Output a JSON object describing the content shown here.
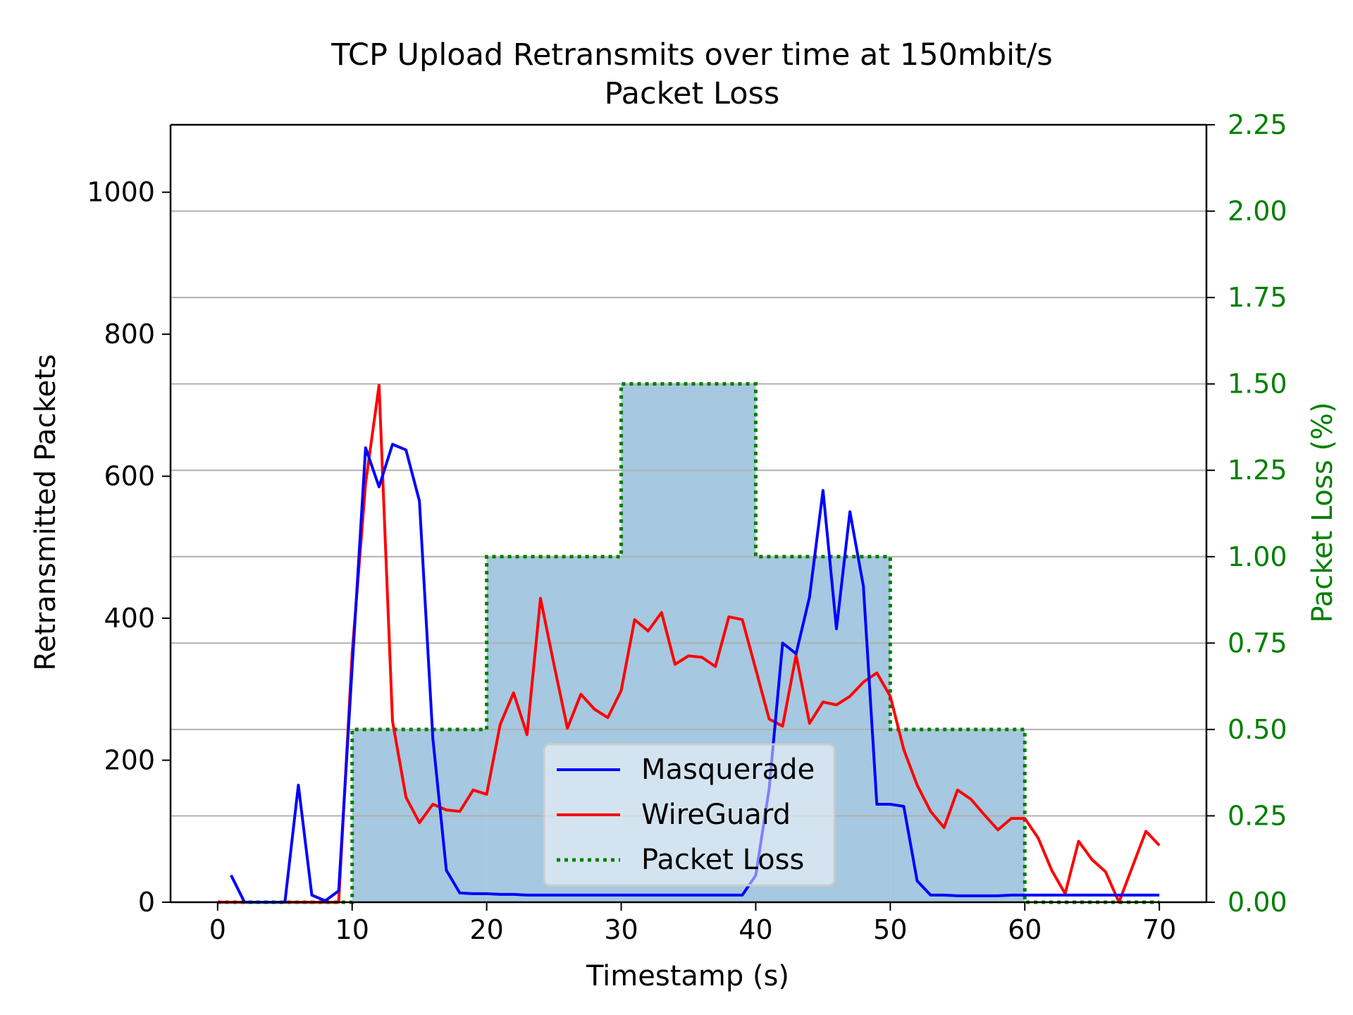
{
  "chart_data": {
    "type": "line",
    "title": "TCP Upload Retransmits over time at 150mbit/s",
    "subtitle": "Packet Loss",
    "xlabel": "Timestamp (s)",
    "ylabel": "Retransmitted Packets",
    "y2label": "Packet Loss (%)",
    "xlim": [
      -3.5,
      73.5
    ],
    "ylim": [
      0,
      1095
    ],
    "y2lim": [
      0,
      2.25
    ],
    "x_ticks": [
      "0",
      "10",
      "20",
      "30",
      "40",
      "50",
      "60",
      "70"
    ],
    "y_ticks": [
      "0",
      "200",
      "400",
      "600",
      "800",
      "1000"
    ],
    "y2_ticks": [
      "0.00",
      "0.25",
      "0.50",
      "0.75",
      "1.00",
      "1.25",
      "1.50",
      "1.75",
      "2.00",
      "2.25"
    ],
    "grid": "horizontal lines at right-axis ticks",
    "legend_position": "lower-center",
    "colors": {
      "masquerade": "#0000ff",
      "wireguard": "#ff0000",
      "packet_loss": "#007f00",
      "packet_loss_fill": "#a6c8e0",
      "right_axis": "#008000"
    },
    "series": [
      {
        "name": "Masquerade",
        "x": [
          1,
          2,
          3,
          4,
          5,
          6,
          7,
          8,
          9,
          10,
          11,
          12,
          13,
          14,
          15,
          16,
          17,
          18,
          19,
          20,
          21,
          22,
          23,
          24,
          25,
          26,
          27,
          28,
          29,
          30,
          31,
          32,
          33,
          34,
          35,
          36,
          37,
          38,
          39,
          40,
          41,
          42,
          43,
          44,
          45,
          46,
          47,
          48,
          49,
          50,
          51,
          52,
          53,
          54,
          55,
          56,
          57,
          58,
          59,
          60,
          61,
          62,
          63,
          64,
          65,
          66,
          67,
          68,
          69,
          70
        ],
        "values": [
          38,
          0,
          0,
          0,
          0,
          165,
          10,
          2,
          16,
          330,
          640,
          585,
          645,
          637,
          565,
          230,
          45,
          13,
          12,
          12,
          11,
          11,
          10,
          10,
          10,
          10,
          10,
          10,
          10,
          10,
          10,
          10,
          10,
          10,
          10,
          10,
          10,
          10,
          10,
          38,
          160,
          365,
          350,
          430,
          580,
          385,
          550,
          445,
          138,
          138,
          135,
          30,
          10,
          10,
          9,
          9,
          9,
          9,
          10,
          10,
          10,
          10,
          10,
          10,
          10,
          10,
          10,
          10,
          10,
          10
        ]
      },
      {
        "name": "WireGuard",
        "x": [
          0,
          1,
          2,
          3,
          4,
          5,
          6,
          7,
          8,
          9,
          10,
          11,
          12,
          13,
          14,
          15,
          16,
          17,
          18,
          19,
          20,
          21,
          22,
          23,
          24,
          25,
          26,
          27,
          28,
          29,
          30,
          31,
          32,
          33,
          34,
          35,
          36,
          37,
          38,
          39,
          40,
          41,
          42,
          43,
          44,
          45,
          46,
          47,
          48,
          49,
          50,
          51,
          52,
          53,
          54,
          55,
          56,
          57,
          58,
          59,
          60,
          61,
          62,
          63,
          64,
          65,
          66,
          67,
          68,
          69,
          70
        ],
        "values": [
          0,
          0,
          0,
          0,
          0,
          0,
          0,
          0,
          0,
          0,
          350,
          590,
          728,
          255,
          148,
          112,
          138,
          130,
          128,
          158,
          152,
          250,
          295,
          236,
          428,
          335,
          245,
          293,
          272,
          260,
          298,
          398,
          382,
          408,
          335,
          347,
          345,
          332,
          402,
          398,
          328,
          258,
          248,
          348,
          252,
          282,
          278,
          290,
          310,
          323,
          290,
          215,
          165,
          128,
          105,
          158,
          145,
          123,
          102,
          118,
          118,
          90,
          45,
          12,
          86,
          60,
          43,
          0,
          50,
          100,
          80
        ]
      }
    ],
    "packet_loss": {
      "name": "Packet Loss",
      "steps": [
        {
          "x0": 0,
          "x1": 10,
          "value": 0.0
        },
        {
          "x0": 10,
          "x1": 20,
          "value": 0.5
        },
        {
          "x0": 20,
          "x1": 30,
          "value": 1.0
        },
        {
          "x0": 30,
          "x1": 40,
          "value": 1.5
        },
        {
          "x0": 40,
          "x1": 50,
          "value": 1.0
        },
        {
          "x0": 50,
          "x1": 60,
          "value": 0.5
        },
        {
          "x0": 60,
          "x1": 70,
          "value": 0.0
        }
      ]
    }
  }
}
